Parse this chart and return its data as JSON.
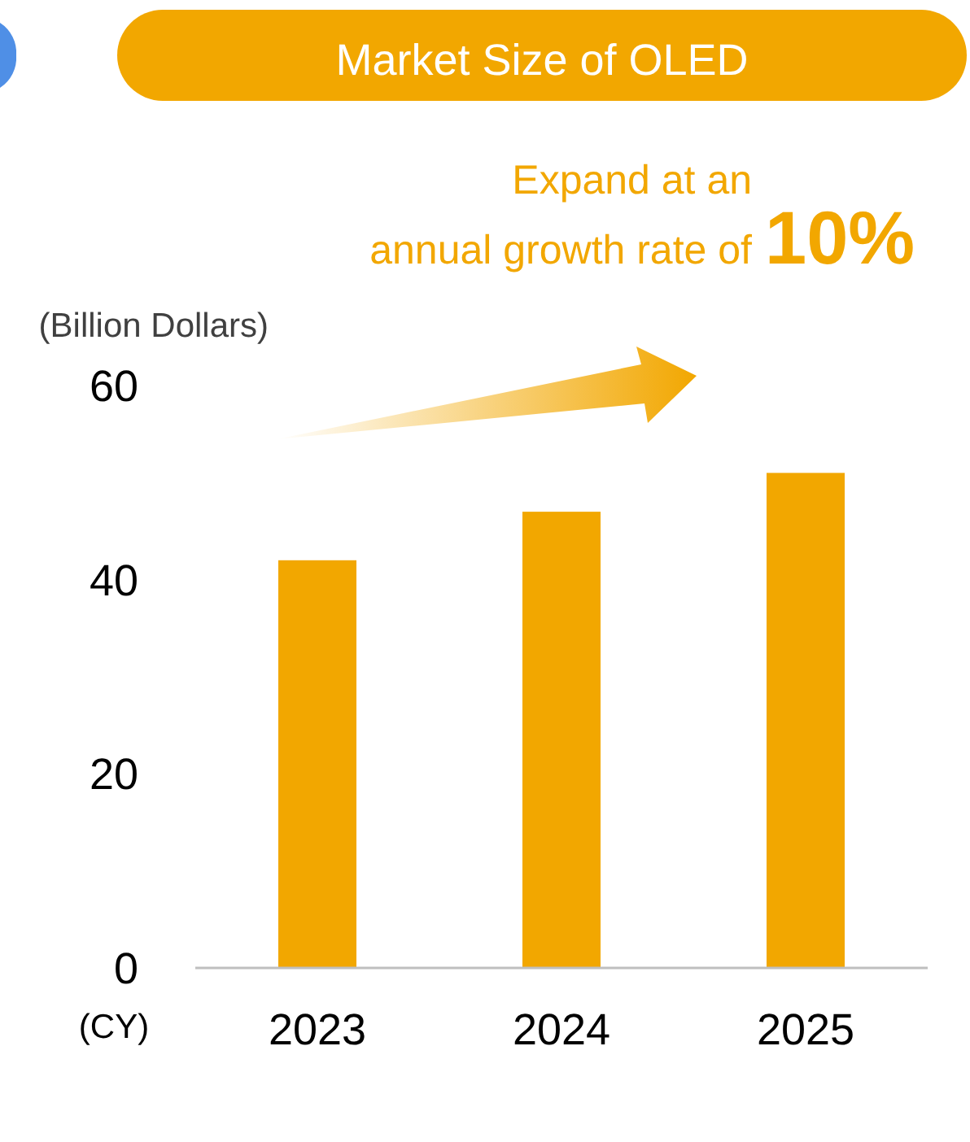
{
  "chart_data": {
    "type": "bar",
    "title": "Market Size of OLED",
    "ylabel": "(Billion Dollars)",
    "xlabel": "(CY)",
    "annotations": [
      "Expand at an annual growth rate of",
      "10%"
    ],
    "categories": [
      "2023",
      "2024",
      "2025"
    ],
    "values": [
      42,
      47,
      51
    ],
    "color": "#f2a700",
    "ylim": [
      0,
      60
    ],
    "yticks": [
      0,
      20,
      40,
      60
    ],
    "grid": false
  }
}
